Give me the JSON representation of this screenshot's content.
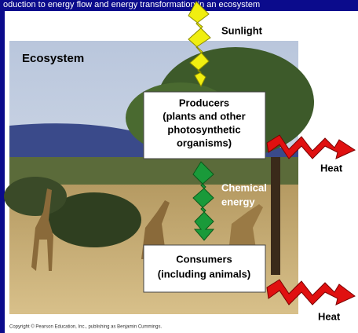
{
  "header": {
    "title": "oduction to energy flow and energy transformation in an ecosystem"
  },
  "diagram": {
    "ecosystem_label": "Ecosystem",
    "sunlight_label": "Sunlight",
    "producers": [
      "Producers",
      "(plants and other",
      "photosynthetic",
      "organisms)"
    ],
    "chemical_energy": [
      "Chemical",
      "energy"
    ],
    "consumers": [
      "Consumers",
      "(including animals)"
    ],
    "heat_top": "Heat",
    "heat_bottom": "Heat"
  },
  "footer": {
    "copyright": "Copyright © Pearson Education, Inc., publishing as Benjamin Cummings."
  }
}
